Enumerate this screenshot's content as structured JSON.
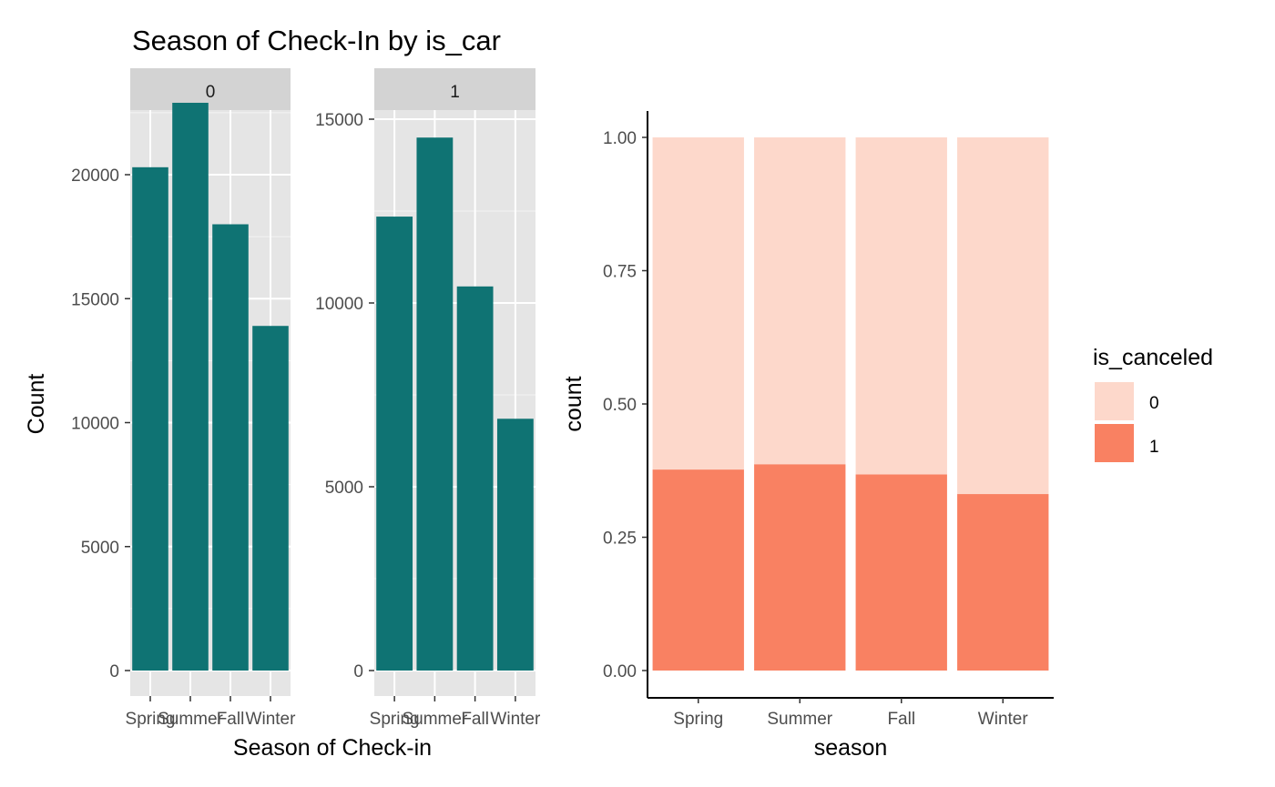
{
  "chart_data": [
    {
      "type": "bar",
      "title": "Season of Check-In by is_car",
      "xlabel": "Season of Check-in",
      "ylabel": "Count",
      "categories": [
        "Spring",
        "Summer",
        "Fall",
        "Winter"
      ],
      "bar_color": "#0F7373",
      "panel_background": "#E5E5E5",
      "strip_background": "#D3D3D3",
      "grid": true,
      "facets": [
        {
          "strip": "0",
          "values": [
            20300,
            22900,
            18000,
            13900
          ],
          "ylim": [
            0,
            23900
          ],
          "yticks": [
            {
              "value": 0,
              "label": "0"
            },
            {
              "value": 5000,
              "label": "5000"
            },
            {
              "value": 10000,
              "label": "10000"
            },
            {
              "value": 15000,
              "label": "15000"
            },
            {
              "value": 20000,
              "label": "20000"
            }
          ]
        },
        {
          "strip": "1",
          "values": [
            12350,
            14500,
            10450,
            6850
          ],
          "ylim": [
            0,
            15200
          ],
          "yticks": [
            {
              "value": 0,
              "label": "0"
            },
            {
              "value": 5000,
              "label": "5000"
            },
            {
              "value": 10000,
              "label": "10000"
            },
            {
              "value": 15000,
              "label": "15000"
            }
          ]
        }
      ]
    },
    {
      "type": "bar",
      "stacked": "fill",
      "title": "",
      "xlabel": "season",
      "ylabel": "count",
      "categories": [
        "Spring",
        "Summer",
        "Fall",
        "Winter"
      ],
      "series": [
        {
          "name": "0",
          "values": [
            0.623,
            0.613,
            0.632,
            0.669
          ],
          "color": "#FDD8CB"
        },
        {
          "name": "1",
          "values": [
            0.377,
            0.387,
            0.368,
            0.331
          ],
          "color": "#F98162"
        }
      ],
      "ylim": [
        0,
        1.05
      ],
      "yticks": [
        {
          "value": 0,
          "label": "0.00"
        },
        {
          "value": 0.25,
          "label": "0.25"
        },
        {
          "value": 0.5,
          "label": "0.50"
        },
        {
          "value": 0.75,
          "label": "0.75"
        },
        {
          "value": 1,
          "label": "1.00"
        }
      ],
      "grid": false,
      "legend": {
        "title": "is_canceled",
        "position": "right",
        "items": [
          {
            "label": "0",
            "color": "#FDD8CB"
          },
          {
            "label": "1",
            "color": "#F98162"
          }
        ]
      }
    }
  ]
}
